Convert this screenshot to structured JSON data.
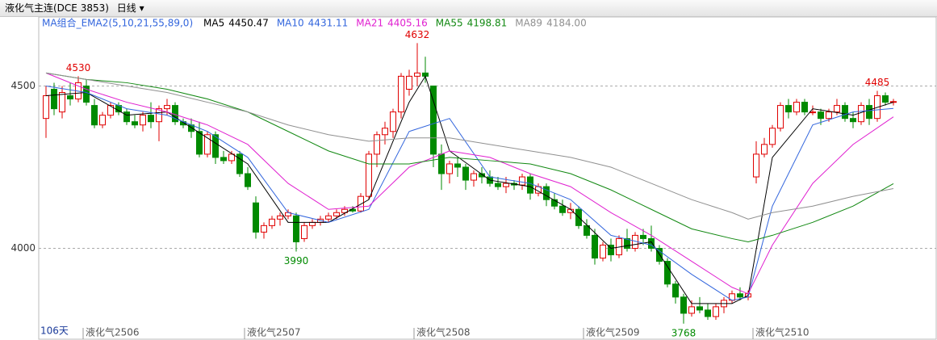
{
  "header": {
    "symbol": "液化气主连(DCE 3853)",
    "period": "日线"
  },
  "chart_data": {
    "type": "candlestick",
    "indicator": "MA组合_EMA2(5,10,21,55,89,0)",
    "days_label": "106天",
    "up_color": "#e00000",
    "down_color": "#008a00",
    "ylim": [
      3760,
      4720
    ],
    "yticks": [
      4000,
      4500
    ],
    "grid": true,
    "x_labels": [
      {
        "index": 5,
        "label": "液化气2506"
      },
      {
        "index": 25,
        "label": "液化气2507"
      },
      {
        "index": 46,
        "label": "液化气2508"
      },
      {
        "index": 67,
        "label": "液化气2509"
      },
      {
        "index": 88,
        "label": "液化气2510"
      }
    ],
    "candles": [
      [
        4400,
        4500,
        4340,
        4470
      ],
      [
        4490,
        4510,
        4410,
        4430
      ],
      [
        4420,
        4500,
        4400,
        4480
      ],
      [
        4470,
        4510,
        4440,
        4460
      ],
      [
        4460,
        4530,
        4450,
        4510
      ],
      [
        4500,
        4520,
        4440,
        4450
      ],
      [
        4440,
        4460,
        4370,
        4380
      ],
      [
        4380,
        4420,
        4370,
        4410
      ],
      [
        4410,
        4450,
        4400,
        4440
      ],
      [
        4440,
        4450,
        4410,
        4420
      ],
      [
        4420,
        4430,
        4380,
        4390
      ],
      [
        4390,
        4410,
        4370,
        4380
      ],
      [
        4380,
        4420,
        4360,
        4410
      ],
      [
        4410,
        4450,
        4370,
        4390
      ],
      [
        4390,
        4440,
        4330,
        4430
      ],
      [
        4430,
        4460,
        4410,
        4440
      ],
      [
        4440,
        4450,
        4380,
        4390
      ],
      [
        4390,
        4400,
        4370,
        4380
      ],
      [
        4380,
        4400,
        4340,
        4360
      ],
      [
        4360,
        4390,
        4280,
        4290
      ],
      [
        4290,
        4360,
        4280,
        4350
      ],
      [
        4350,
        4360,
        4260,
        4280
      ],
      [
        4280,
        4300,
        4260,
        4270
      ],
      [
        4270,
        4300,
        4260,
        4290
      ],
      [
        4290,
        4300,
        4220,
        4230
      ],
      [
        4230,
        4250,
        4180,
        4190
      ],
      [
        4140,
        4160,
        4030,
        4050
      ],
      [
        4050,
        4080,
        4030,
        4070
      ],
      [
        4070,
        4100,
        4060,
        4090
      ],
      [
        4090,
        4110,
        4070,
        4100
      ],
      [
        4100,
        4120,
        4090,
        4110
      ],
      [
        4100,
        4110,
        3990,
        4020
      ],
      [
        4030,
        4080,
        4020,
        4070
      ],
      [
        4070,
        4090,
        4060,
        4080
      ],
      [
        4080,
        4100,
        4070,
        4090
      ],
      [
        4090,
        4110,
        4080,
        4100
      ],
      [
        4100,
        4120,
        4090,
        4110
      ],
      [
        4110,
        4130,
        4100,
        4120
      ],
      [
        4120,
        4130,
        4110,
        4115
      ],
      [
        4115,
        4170,
        4110,
        4160
      ],
      [
        4160,
        4300,
        4150,
        4290
      ],
      [
        4290,
        4360,
        4250,
        4350
      ],
      [
        4350,
        4390,
        4320,
        4370
      ],
      [
        4360,
        4430,
        4340,
        4420
      ],
      [
        4420,
        4540,
        4400,
        4530
      ],
      [
        4490,
        4550,
        4470,
        4530
      ],
      [
        4530,
        4632,
        4500,
        4540
      ],
      [
        4540,
        4590,
        4510,
        4530
      ],
      [
        4500,
        4500,
        4250,
        4290
      ],
      [
        4290,
        4320,
        4180,
        4230
      ],
      [
        4230,
        4270,
        4200,
        4260
      ],
      [
        4260,
        4280,
        4220,
        4250
      ],
      [
        4250,
        4260,
        4180,
        4210
      ],
      [
        4210,
        4240,
        4190,
        4230
      ],
      [
        4230,
        4250,
        4200,
        4220
      ],
      [
        4220,
        4240,
        4190,
        4200
      ],
      [
        4200,
        4220,
        4180,
        4190
      ],
      [
        4190,
        4220,
        4170,
        4200
      ],
      [
        4200,
        4210,
        4180,
        4195
      ],
      [
        4195,
        4230,
        4180,
        4220
      ],
      [
        4220,
        4230,
        4150,
        4170
      ],
      [
        4170,
        4200,
        4160,
        4190
      ],
      [
        4190,
        4200,
        4130,
        4150
      ],
      [
        4150,
        4170,
        4120,
        4130
      ],
      [
        4130,
        4150,
        4100,
        4110
      ],
      [
        4110,
        4140,
        4090,
        4120
      ],
      [
        4120,
        4130,
        4060,
        4070
      ],
      [
        4070,
        4090,
        4030,
        4040
      ],
      [
        4040,
        4060,
        3950,
        3970
      ],
      [
        3970,
        4020,
        3960,
        4010
      ],
      [
        4010,
        4030,
        3960,
        3980
      ],
      [
        3980,
        4040,
        3970,
        4030
      ],
      [
        4030,
        4060,
        3990,
        4000
      ],
      [
        4000,
        4050,
        3990,
        4040
      ],
      [
        4040,
        4060,
        4010,
        4030
      ],
      [
        4030,
        4070,
        3990,
        4000
      ],
      [
        4000,
        4010,
        3950,
        3960
      ],
      [
        3960,
        3970,
        3880,
        3890
      ],
      [
        3890,
        3900,
        3830,
        3850
      ],
      [
        3850,
        3860,
        3768,
        3800
      ],
      [
        3800,
        3840,
        3790,
        3820
      ],
      [
        3820,
        3850,
        3800,
        3810
      ],
      [
        3810,
        3830,
        3780,
        3790
      ],
      [
        3790,
        3830,
        3780,
        3820
      ],
      [
        3820,
        3850,
        3800,
        3840
      ],
      [
        3840,
        3870,
        3830,
        3860
      ],
      [
        3860,
        3880,
        3840,
        3850
      ],
      [
        3850,
        3870,
        3840,
        3860
      ],
      [
        4220,
        4330,
        4200,
        4290
      ],
      [
        4290,
        4340,
        4280,
        4320
      ],
      [
        4320,
        4380,
        4310,
        4370
      ],
      [
        4370,
        4450,
        4360,
        4440
      ],
      [
        4440,
        4460,
        4400,
        4420
      ],
      [
        4420,
        4460,
        4410,
        4450
      ],
      [
        4450,
        4460,
        4410,
        4420
      ],
      [
        4420,
        4440,
        4410,
        4420
      ],
      [
        4420,
        4430,
        4380,
        4400
      ],
      [
        4400,
        4430,
        4390,
        4420
      ],
      [
        4420,
        4460,
        4410,
        4440
      ],
      [
        4440,
        4450,
        4390,
        4400
      ],
      [
        4400,
        4420,
        4370,
        4390
      ],
      [
        4390,
        4450,
        4380,
        4440
      ],
      [
        4440,
        4460,
        4380,
        4400
      ],
      [
        4400,
        4485,
        4390,
        4470
      ],
      [
        4470,
        4480,
        4440,
        4450
      ],
      [
        4450,
        4460,
        4440,
        4452
      ]
    ],
    "annotations": [
      {
        "index": 4,
        "value": 4530,
        "color": "#e00000",
        "label": "4530"
      },
      {
        "index": 31,
        "value": 3990,
        "color": "#008a00",
        "label": "3990"
      },
      {
        "index": 46,
        "value": 4632,
        "color": "#e00000",
        "label": "4632"
      },
      {
        "index": 79,
        "value": 3768,
        "color": "#008a00",
        "label": "3768"
      },
      {
        "index": 103,
        "value": 4485,
        "color": "#e00000",
        "label": "4485"
      }
    ],
    "series": [
      {
        "name": "MA5",
        "latest": "4450.47",
        "color": "#000000",
        "x": [
          0,
          5,
          10,
          15,
          20,
          25,
          30,
          35,
          40,
          45,
          47,
          50,
          55,
          60,
          65,
          70,
          75,
          80,
          85,
          87,
          90,
          95,
          100,
          105
        ],
        "values": [
          4470,
          4480,
          4410,
          4420,
          4340,
          4260,
          4080,
          4080,
          4150,
          4450,
          4530,
          4300,
          4210,
          4190,
          4120,
          4000,
          4020,
          3830,
          3830,
          3855,
          4280,
          4430,
          4410,
          4450
        ]
      },
      {
        "name": "MA10",
        "latest": "4431.11",
        "color": "#3366dd",
        "x": [
          0,
          5,
          10,
          15,
          20,
          25,
          30,
          35,
          40,
          45,
          50,
          55,
          60,
          65,
          70,
          75,
          80,
          85,
          87,
          90,
          95,
          100,
          105
        ],
        "values": [
          4500,
          4480,
          4430,
          4410,
          4360,
          4280,
          4110,
          4080,
          4120,
          4360,
          4400,
          4220,
          4200,
          4150,
          4040,
          4010,
          3920,
          3840,
          3850,
          4130,
          4380,
          4420,
          4431
        ]
      },
      {
        "name": "MA21",
        "latest": "4405.16",
        "color": "#e020d0",
        "x": [
          0,
          5,
          10,
          15,
          20,
          25,
          30,
          35,
          40,
          45,
          50,
          55,
          60,
          65,
          70,
          75,
          80,
          85,
          87,
          90,
          95,
          100,
          105
        ],
        "values": [
          4540,
          4490,
          4450,
          4420,
          4380,
          4320,
          4200,
          4120,
          4130,
          4250,
          4300,
          4280,
          4230,
          4190,
          4110,
          4040,
          3960,
          3880,
          3860,
          4010,
          4200,
          4320,
          4405
        ]
      },
      {
        "name": "MA55",
        "latest": "4198.81",
        "color": "#118811",
        "x": [
          0,
          5,
          10,
          15,
          20,
          25,
          30,
          35,
          40,
          45,
          50,
          55,
          60,
          65,
          70,
          75,
          80,
          85,
          87,
          90,
          95,
          100,
          105
        ],
        "values": [
          4540,
          4520,
          4510,
          4490,
          4460,
          4420,
          4360,
          4300,
          4260,
          4260,
          4280,
          4270,
          4260,
          4230,
          4180,
          4120,
          4060,
          4030,
          4020,
          4040,
          4080,
          4130,
          4199
        ]
      },
      {
        "name": "MA89",
        "latest": "4184.00",
        "color": "#909090",
        "x": [
          0,
          5,
          10,
          15,
          20,
          25,
          30,
          35,
          40,
          45,
          50,
          55,
          60,
          65,
          70,
          75,
          80,
          85,
          87,
          90,
          95,
          100,
          105
        ],
        "values": [
          4540,
          4520,
          4500,
          4480,
          4450,
          4420,
          4380,
          4350,
          4330,
          4340,
          4340,
          4320,
          4300,
          4280,
          4250,
          4200,
          4150,
          4110,
          4090,
          4110,
          4130,
          4160,
          4184
        ]
      }
    ]
  }
}
